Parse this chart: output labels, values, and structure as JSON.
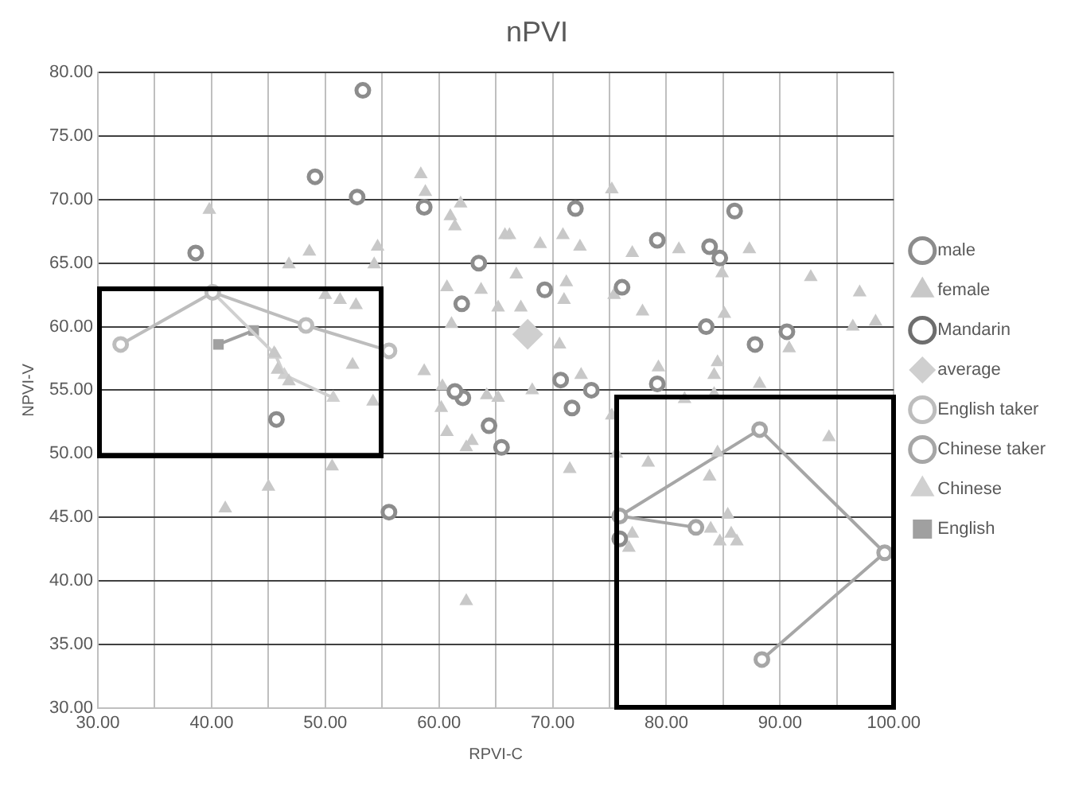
{
  "chart_data": {
    "type": "scatter",
    "title": "nPVI",
    "xlabel": "RPVI-C",
    "ylabel": "NPVI-V",
    "xlim": [
      30,
      100
    ],
    "ylim": [
      30,
      80
    ],
    "xticks": [
      {
        "value": 30,
        "label": "30.00"
      },
      {
        "value": 35,
        "label": null
      },
      {
        "value": 40,
        "label": "40.00"
      },
      {
        "value": 45,
        "label": null
      },
      {
        "value": 50,
        "label": "50.00"
      },
      {
        "value": 55,
        "label": null
      },
      {
        "value": 60,
        "label": "60.00"
      },
      {
        "value": 65,
        "label": null
      },
      {
        "value": 70,
        "label": "70.00"
      },
      {
        "value": 75,
        "label": null
      },
      {
        "value": 80,
        "label": "80.00"
      },
      {
        "value": 85,
        "label": null
      },
      {
        "value": 90,
        "label": "90.00"
      },
      {
        "value": 95,
        "label": null
      },
      {
        "value": 100,
        "label": "100.00"
      }
    ],
    "yticks": [
      {
        "value": 30,
        "label": "30.00"
      },
      {
        "value": 35,
        "label": "35.00"
      },
      {
        "value": 40,
        "label": "40.00"
      },
      {
        "value": 45,
        "label": "45.00"
      },
      {
        "value": 50,
        "label": "50.00"
      },
      {
        "value": 55,
        "label": "55.00"
      },
      {
        "value": 60,
        "label": "60.00"
      },
      {
        "value": 65,
        "label": "65.00"
      },
      {
        "value": 70,
        "label": "70.00"
      },
      {
        "value": 75,
        "label": "75.00"
      },
      {
        "value": 80,
        "label": "80.00"
      }
    ],
    "grid": true,
    "legend": "right",
    "series": [
      {
        "name": "male",
        "marker": "circle",
        "color": "#8c8c8c",
        "x": [
          53.3,
          49.1,
          52.8,
          58.7,
          38.6,
          63.5,
          62.0,
          62.1,
          61.4,
          45.7,
          55.6,
          64.4,
          65.5,
          72.0,
          86.0,
          79.2,
          83.8,
          84.7,
          69.3,
          76.1,
          83.5,
          87.8,
          90.6,
          70.7,
          73.4,
          71.7,
          79.2,
          75.9
        ],
        "values": [
          78.6,
          71.8,
          70.2,
          69.4,
          65.8,
          65.0,
          61.8,
          54.4,
          54.9,
          52.7,
          45.4,
          52.2,
          50.5,
          69.3,
          69.1,
          66.8,
          66.3,
          65.4,
          62.9,
          63.1,
          60.0,
          58.6,
          59.6,
          55.8,
          55.0,
          53.6,
          55.5,
          43.3
        ]
      },
      {
        "name": "female",
        "marker": "triangle",
        "color": "#c8c8c8",
        "x": [
          39.8,
          58.4,
          58.8,
          61.0,
          61.9,
          61.4,
          65.8,
          46.8,
          48.6,
          54.6,
          54.3,
          50.0,
          51.3,
          52.7,
          60.7,
          63.7,
          65.2,
          61.1,
          58.7,
          52.4,
          45.5,
          45.8,
          46.8,
          54.2,
          60.3,
          64.2,
          65.2,
          50.6,
          45.0,
          41.2,
          60.2,
          60.7,
          62.9,
          62.4,
          62.4,
          75.2,
          66.2,
          68.9,
          70.9,
          72.4,
          77.0,
          81.1,
          87.3,
          66.8,
          71.2,
          71.0,
          84.9,
          92.7,
          97.0,
          67.2,
          75.4,
          77.9,
          85.1,
          96.4,
          98.4,
          90.8,
          70.6,
          72.5,
          79.3,
          84.5,
          84.2,
          88.2,
          68.2,
          81.6,
          84.2,
          75.2,
          75.6,
          78.4,
          71.5,
          84.5,
          83.8,
          94.3,
          77.0,
          76.7,
          83.9,
          85.4,
          85.7,
          84.7,
          86.2
        ],
        "values": [
          69.2,
          72.0,
          70.6,
          68.7,
          69.7,
          67.9,
          67.2,
          64.9,
          65.9,
          66.3,
          64.9,
          62.5,
          62.1,
          61.7,
          63.1,
          62.9,
          61.5,
          60.2,
          56.5,
          57.0,
          57.9,
          56.6,
          55.7,
          54.1,
          55.3,
          54.6,
          54.4,
          49.0,
          47.4,
          45.7,
          53.6,
          51.7,
          51.0,
          50.5,
          38.4,
          70.8,
          67.2,
          66.5,
          67.2,
          66.3,
          65.8,
          66.1,
          66.1,
          64.1,
          63.5,
          62.1,
          64.2,
          63.9,
          62.7,
          61.5,
          62.5,
          61.2,
          61.0,
          60.0,
          60.4,
          58.3,
          58.6,
          56.2,
          56.8,
          57.2,
          56.2,
          55.5,
          55.0,
          54.3,
          54.7,
          53.0,
          50.0,
          49.3,
          48.8,
          50.1,
          48.2,
          51.3,
          43.7,
          42.6,
          44.1,
          45.2,
          43.7,
          43.1,
          43.1
        ]
      },
      {
        "name": "Mandarin",
        "type": "line",
        "marker": "circle",
        "color": "#6e6e6e"
      },
      {
        "name": "average",
        "marker": "diamond",
        "color": "#cfcfcf",
        "x": [
          67.8
        ],
        "values": [
          59.4
        ]
      },
      {
        "name": "English taker",
        "type": "line",
        "marker": "circle",
        "color": "#bdbdbd",
        "x": [
          32.0,
          40.1,
          48.3,
          55.6
        ],
        "values": [
          58.6,
          62.7,
          60.1,
          58.1
        ]
      },
      {
        "name": "Chinese taker",
        "type": "line",
        "marker": "circle",
        "color": "#a6a6a6",
        "x": [
          82.6,
          75.9,
          88.2,
          99.2,
          88.4
        ],
        "values": [
          44.2,
          45.1,
          51.9,
          42.2,
          33.8
        ]
      },
      {
        "name": "Chinese",
        "type": "line",
        "marker": "triangle",
        "color": "#d0d0d0",
        "x": [
          40.1,
          45.6,
          46.4,
          50.7
        ],
        "values": [
          62.7,
          57.8,
          56.2,
          54.4
        ]
      },
      {
        "name": "English",
        "type": "line",
        "marker": "square",
        "color": "#a0a0a0",
        "x": [
          40.6,
          43.7
        ],
        "values": [
          58.6,
          59.7
        ]
      }
    ]
  }
}
